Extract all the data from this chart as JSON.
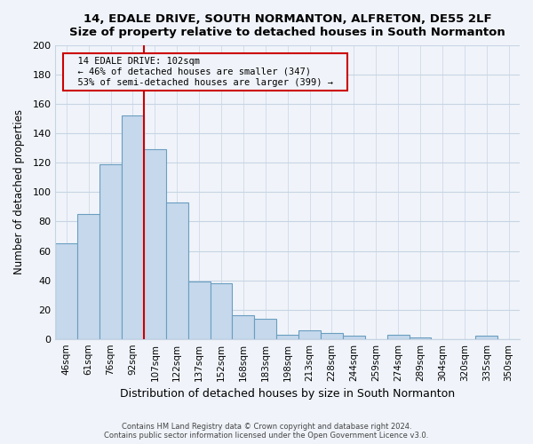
{
  "title1": "14, EDALE DRIVE, SOUTH NORMANTON, ALFRETON, DE55 2LF",
  "title2": "Size of property relative to detached houses in South Normanton",
  "xlabel": "Distribution of detached houses by size in South Normanton",
  "ylabel": "Number of detached properties",
  "bar_labels": [
    "46sqm",
    "61sqm",
    "76sqm",
    "92sqm",
    "107sqm",
    "122sqm",
    "137sqm",
    "152sqm",
    "168sqm",
    "183sqm",
    "198sqm",
    "213sqm",
    "228sqm",
    "244sqm",
    "259sqm",
    "274sqm",
    "289sqm",
    "304sqm",
    "320sqm",
    "335sqm",
    "350sqm"
  ],
  "bar_values": [
    65,
    85,
    119,
    152,
    129,
    93,
    39,
    38,
    16,
    14,
    3,
    6,
    4,
    2,
    0,
    3,
    1,
    0,
    0,
    2,
    0
  ],
  "bar_color": "#c5d8ec",
  "bar_edgecolor": "#6a9ec0",
  "vline_color": "#cc0000",
  "annotation_title": "14 EDALE DRIVE: 102sqm",
  "annotation_line1": "← 46% of detached houses are smaller (347)",
  "annotation_line2": "53% of semi-detached houses are larger (399) →",
  "annotation_box_edgecolor": "#cc0000",
  "ylim": [
    0,
    200
  ],
  "yticks": [
    0,
    20,
    40,
    60,
    80,
    100,
    120,
    140,
    160,
    180,
    200
  ],
  "footer1": "Contains HM Land Registry data © Crown copyright and database right 2024.",
  "footer2": "Contains public sector information licensed under the Open Government Licence v3.0.",
  "bg_color": "#f0f4fa",
  "grid_color": "#c8d4e4"
}
